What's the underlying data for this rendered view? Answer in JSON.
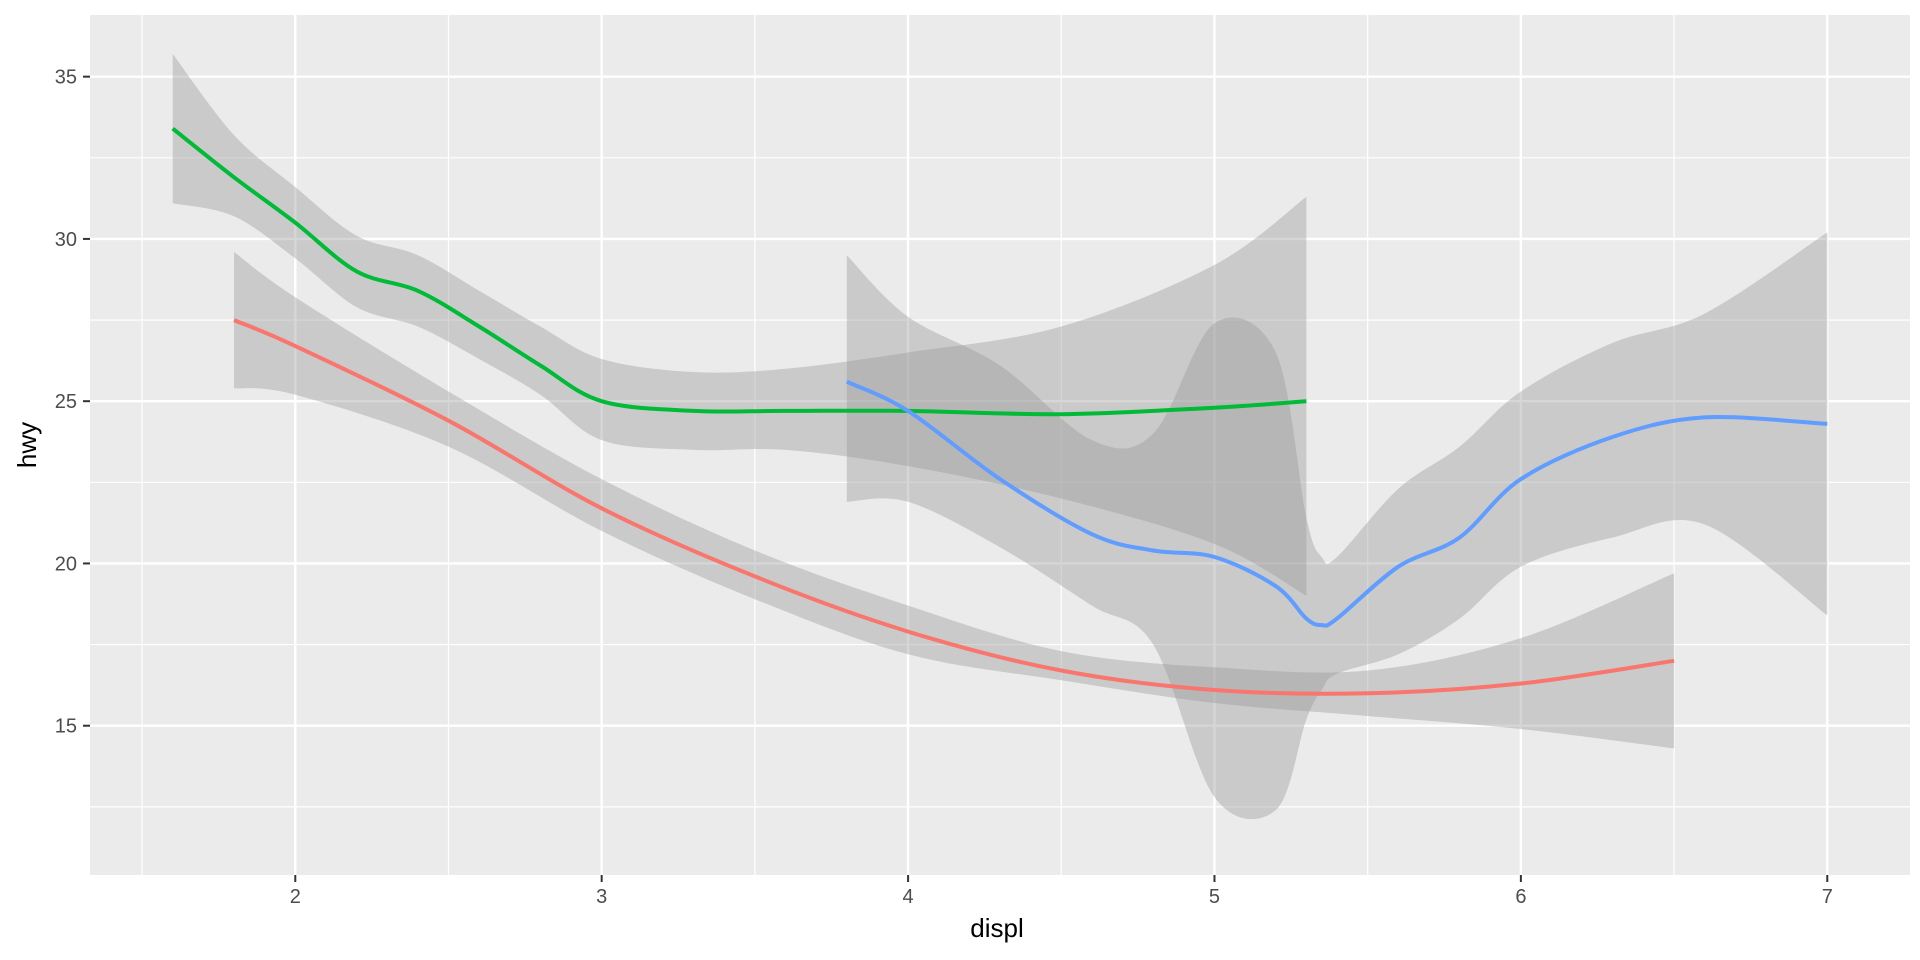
{
  "chart_data": {
    "type": "line",
    "title": "",
    "xlabel": "displ",
    "ylabel": "hwy",
    "xlim": [
      1.33,
      7.27
    ],
    "ylim": [
      10.4,
      36.9
    ],
    "x_ticks": [
      2,
      3,
      4,
      5,
      6,
      7
    ],
    "y_ticks": [
      15,
      20,
      25,
      30,
      35
    ],
    "grid": true,
    "legend": "none",
    "colors": {
      "panel_background": "#ebebeb",
      "grid_line": "#ffffff",
      "ribbon": "#999999",
      "tick_label": "#4d4d4d"
    },
    "series": [
      {
        "color": "#f8766d",
        "x": [
          1.8,
          2.0,
          2.5,
          3.0,
          3.5,
          4.0,
          4.5,
          5.0,
          5.5,
          6.0,
          6.5
        ],
        "y": [
          27.5,
          26.7,
          24.4,
          21.7,
          19.6,
          17.9,
          16.7,
          16.1,
          16.0,
          16.3,
          17.0
        ],
        "lower": [
          25.4,
          25.2,
          23.6,
          21.0,
          18.9,
          17.2,
          16.4,
          15.7,
          15.3,
          14.9,
          14.3
        ],
        "upper": [
          29.6,
          28.2,
          25.3,
          22.6,
          20.4,
          18.7,
          17.3,
          16.8,
          16.7,
          17.7,
          19.7
        ]
      },
      {
        "color": "#00ba38",
        "x": [
          1.6,
          1.8,
          2.0,
          2.2,
          2.4,
          2.6,
          2.8,
          3.0,
          3.3,
          3.6,
          4.0,
          4.5,
          5.0,
          5.3
        ],
        "y": [
          33.4,
          31.9,
          30.5,
          29.0,
          28.4,
          27.3,
          26.1,
          25.0,
          24.7,
          24.7,
          24.7,
          24.6,
          24.8,
          25.0
        ],
        "lower": [
          31.1,
          30.7,
          29.4,
          27.9,
          27.3,
          26.3,
          25.2,
          23.8,
          23.5,
          23.5,
          23.0,
          22.0,
          20.6,
          19.0
        ],
        "upper": [
          35.7,
          33.2,
          31.6,
          30.1,
          29.5,
          28.4,
          27.3,
          26.3,
          25.9,
          26.0,
          26.5,
          27.3,
          29.2,
          31.3
        ]
      },
      {
        "color": "#619cff",
        "x": [
          3.8,
          4.0,
          4.3,
          4.6,
          4.8,
          5.0,
          5.2,
          5.3,
          5.35,
          5.4,
          5.6,
          5.8,
          6.0,
          6.3,
          6.6,
          7.0
        ],
        "y": [
          25.6,
          24.7,
          22.6,
          20.9,
          20.4,
          20.2,
          19.3,
          18.3,
          18.1,
          18.3,
          19.9,
          20.8,
          22.6,
          23.9,
          24.5,
          24.3
        ],
        "lower": [
          21.9,
          21.9,
          20.5,
          18.7,
          17.5,
          12.8,
          12.4,
          15.2,
          16.1,
          16.6,
          17.2,
          18.3,
          19.9,
          20.8,
          21.2,
          18.4
        ],
        "upper": [
          29.5,
          27.6,
          26.1,
          23.8,
          24.0,
          27.4,
          26.5,
          21.4,
          20.2,
          20.2,
          22.3,
          23.6,
          25.3,
          26.8,
          27.7,
          30.2
        ]
      }
    ]
  }
}
